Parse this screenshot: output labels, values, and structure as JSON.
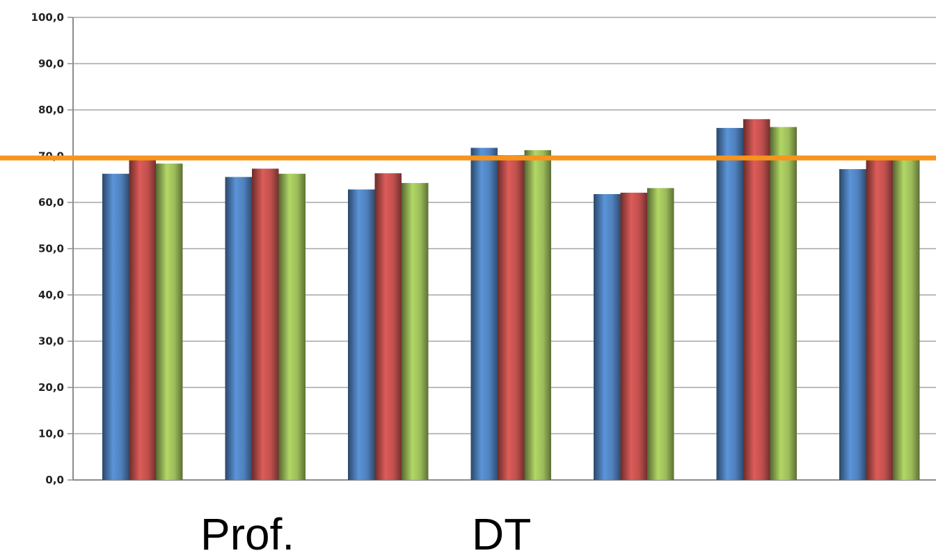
{
  "chart_data": {
    "type": "bar",
    "ylim": [
      0,
      100
    ],
    "yticks": [
      "0,0",
      "10,0",
      "20,0",
      "30,0",
      "40,0",
      "50,0",
      "60,0",
      "70,0",
      "80,0",
      "90,0",
      "100,0"
    ],
    "grid": true,
    "legend": "none",
    "series": [
      {
        "color": "#4f81bd",
        "values": [
          66.2,
          65.5,
          62.8,
          71.8,
          61.8,
          76.1,
          67.2
        ]
      },
      {
        "color": "#c0504d",
        "values": [
          69.8,
          67.3,
          66.3,
          70.2,
          62.1,
          78.0,
          69.5
        ]
      },
      {
        "color": "#9bbb59",
        "values": [
          68.4,
          66.2,
          64.2,
          71.3,
          63.1,
          76.3,
          69.6
        ]
      }
    ],
    "reference_line": {
      "value": 69.6,
      "color": "#f7941d"
    }
  },
  "labels": {
    "group_a": "Prof.",
    "group_b": "DT"
  }
}
